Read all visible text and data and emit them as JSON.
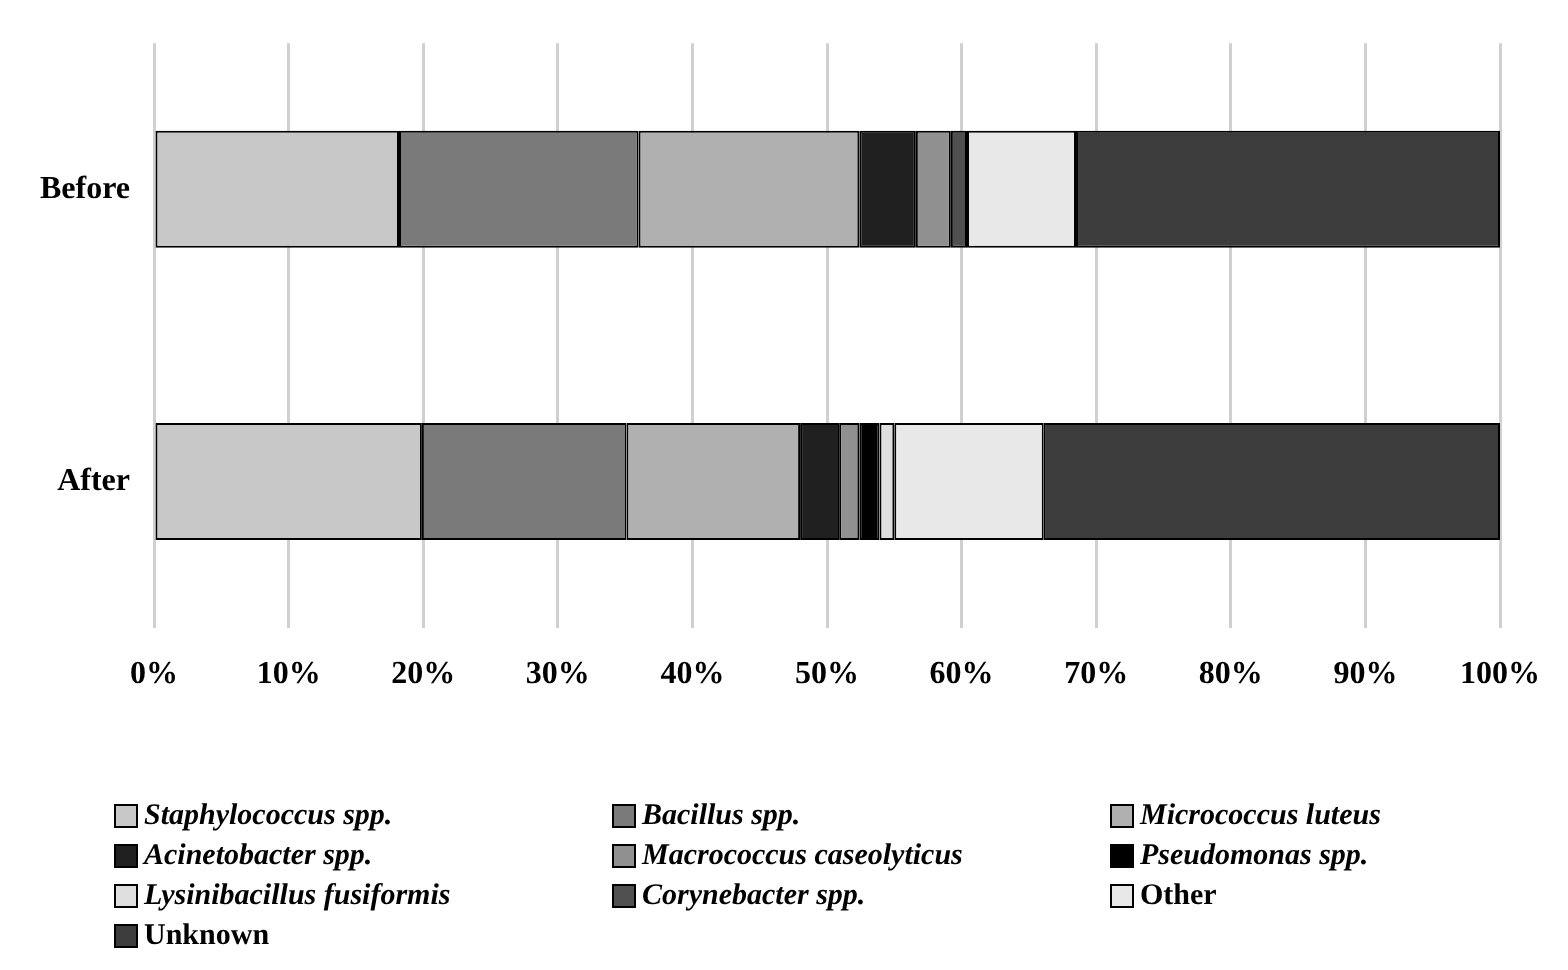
{
  "chart_data": {
    "type": "bar",
    "orientation": "horizontal",
    "stacked": true,
    "categories": [
      "Before",
      "After"
    ],
    "series": [
      {
        "name": "Staphylococcus spp.",
        "color": "#c8c8c8",
        "values": [
          18.2,
          19.9
        ]
      },
      {
        "name": "Bacillus spp.",
        "color": "#7a7a7a",
        "values": [
          17.8,
          15.2
        ]
      },
      {
        "name": "Micrococcus luteus",
        "color": "#b0b0b0",
        "values": [
          16.4,
          12.9
        ]
      },
      {
        "name": "Acinetobacter spp.",
        "color": "#202020",
        "values": [
          4.2,
          2.9
        ]
      },
      {
        "name": "Macrococcus caseolyticus",
        "color": "#909090",
        "values": [
          2.6,
          1.5
        ]
      },
      {
        "name": "Pseudomonas spp.",
        "color": "#000000",
        "values": [
          0,
          1.5
        ]
      },
      {
        "name": "Lysinibacillus fusiformis",
        "color": "#dedede",
        "values": [
          0,
          1.1
        ]
      },
      {
        "name": "Corynebacter spp.",
        "color": "#505050",
        "values": [
          1.2,
          0
        ]
      },
      {
        "name": "Other",
        "color": "#e8e8e8",
        "values": [
          8.1,
          11.1
        ]
      },
      {
        "name": "Unknown",
        "color": "#3c3c3c",
        "values": [
          31.5,
          33.9
        ]
      }
    ],
    "xlim": [
      0,
      100
    ],
    "xticks": [
      {
        "value": 0,
        "label": "0%"
      },
      {
        "value": 10,
        "label": "10%"
      },
      {
        "value": 20,
        "label": "20%"
      },
      {
        "value": 30,
        "label": "30%"
      },
      {
        "value": 40,
        "label": "40%"
      },
      {
        "value": 50,
        "label": "50%"
      },
      {
        "value": 60,
        "label": "60%"
      },
      {
        "value": 70,
        "label": "70%"
      },
      {
        "value": 80,
        "label": "80%"
      },
      {
        "value": 90,
        "label": "90%"
      },
      {
        "value": 100,
        "label": "100%"
      }
    ],
    "grid": "x",
    "legend": "bottom"
  }
}
